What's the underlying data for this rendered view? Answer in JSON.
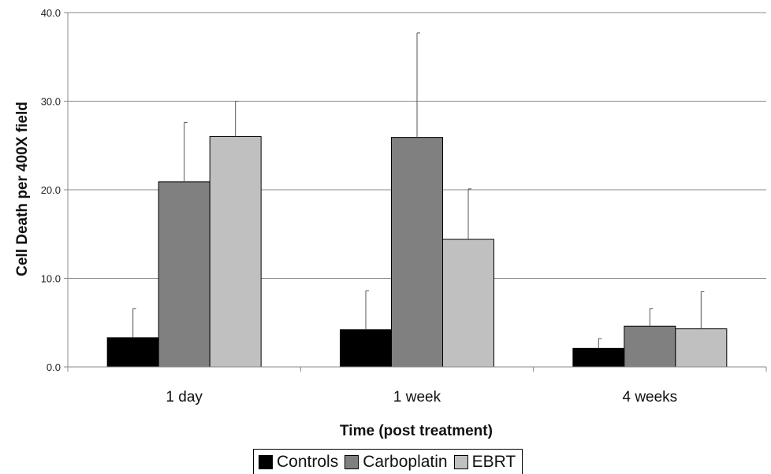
{
  "chart_data": {
    "type": "bar",
    "categories": [
      "1 day",
      "1 week",
      "4 weeks"
    ],
    "series": [
      {
        "name": "Controls",
        "color": "#000000",
        "values": [
          3.3,
          4.2,
          2.1
        ],
        "error": [
          3.3,
          4.4,
          1.1
        ]
      },
      {
        "name": "Carboplatin",
        "color": "#808080",
        "values": [
          20.9,
          25.9,
          4.6
        ],
        "error": [
          6.7,
          11.8,
          2.0
        ]
      },
      {
        "name": "EBRT",
        "color": "#c0c0c0",
        "values": [
          26.0,
          14.4,
          4.3
        ],
        "error": [
          4.0,
          5.7,
          4.2
        ]
      }
    ],
    "xlabel": "Time (post treatment)",
    "ylabel": "Cell Death per 400X field",
    "ylim": [
      0,
      40
    ],
    "yticks": [
      "0.0",
      "10.0",
      "20.0",
      "30.0",
      "40.0"
    ],
    "grid": true,
    "legend_position": "bottom"
  }
}
